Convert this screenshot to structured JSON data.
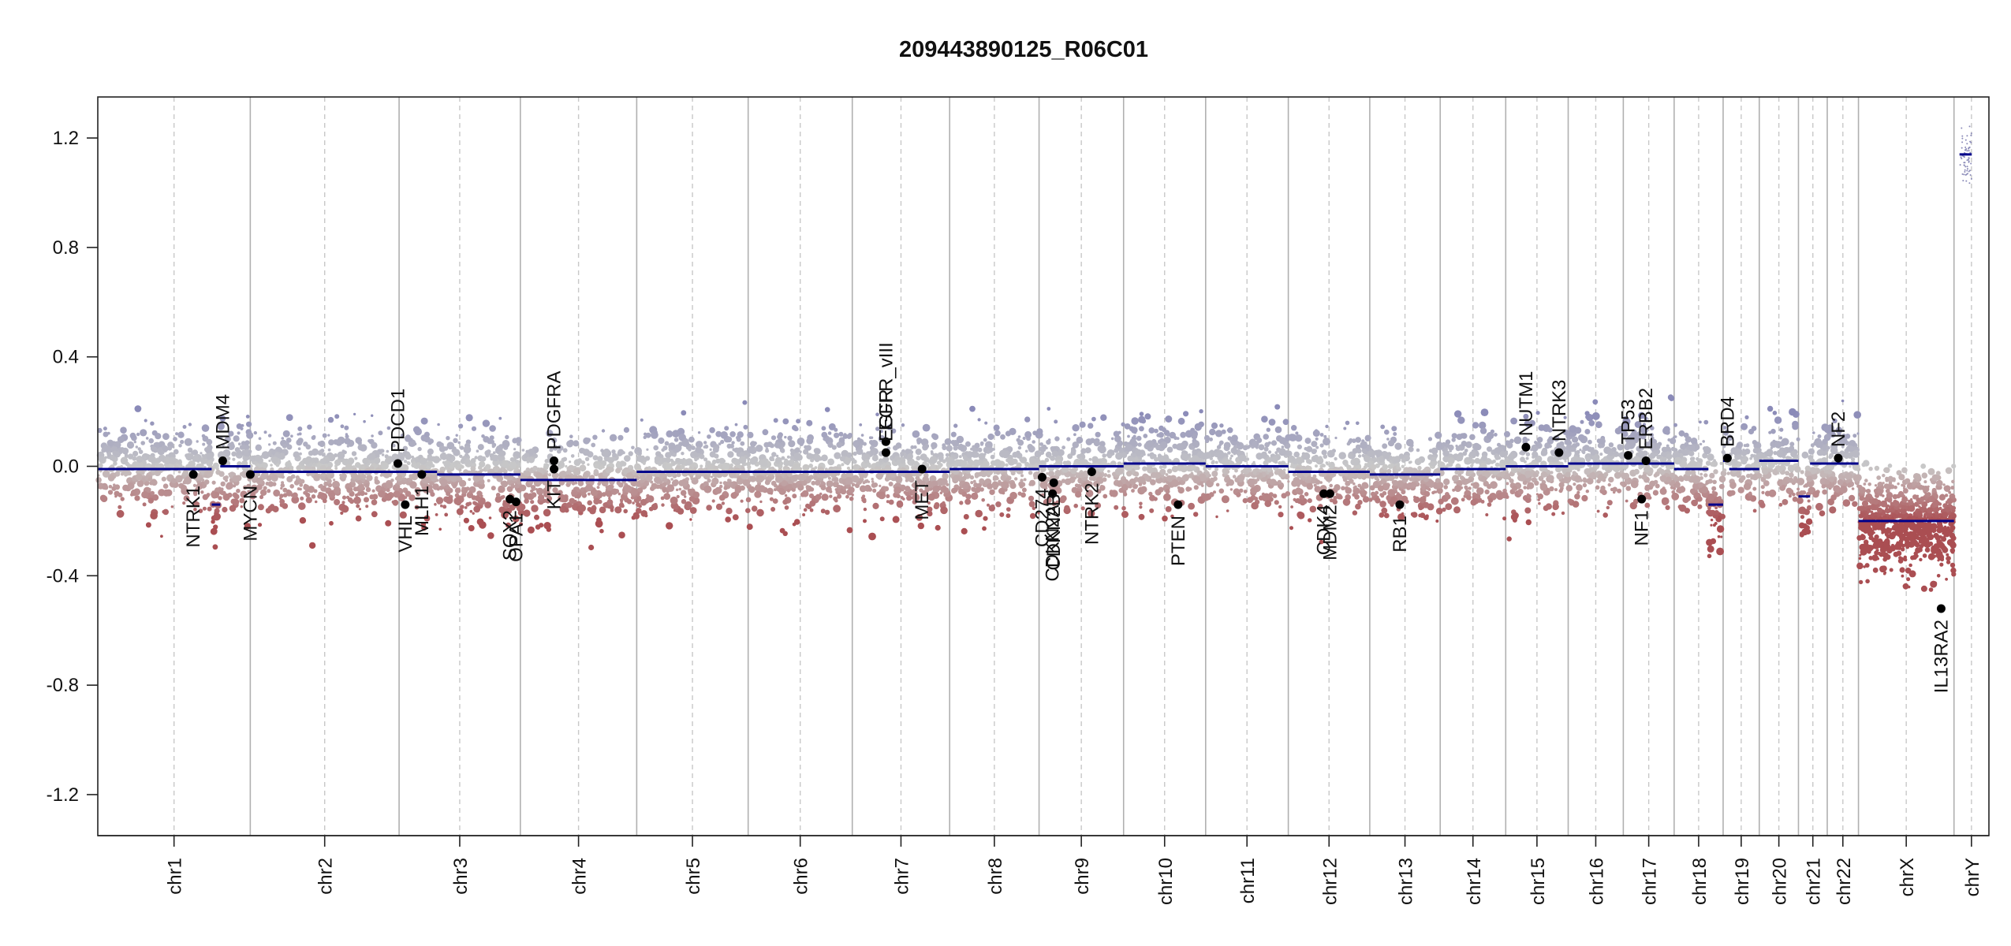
{
  "chart_data": {
    "type": "scatter",
    "title": "209443890125_R06C01",
    "xlabel": "",
    "ylabel": "",
    "ylim": [
      -1.35,
      1.35
    ],
    "yticks": [
      "1.2",
      "0.8",
      "0.4",
      "0.0",
      "-0.4",
      "-0.8",
      "-1.2"
    ],
    "ytick_values": [
      1.2,
      0.8,
      0.4,
      0.0,
      -0.4,
      -0.8,
      -1.2
    ],
    "grid": false,
    "legend": "none",
    "colors": {
      "segment": "#00008b",
      "gain": "#8b8bb8",
      "loss": "#a0393a",
      "neutral": "#c8c8c8",
      "gene": "#000000"
    },
    "chromosomes": [
      {
        "name": "chr1",
        "start": 0,
        "end": 249
      },
      {
        "name": "chr2",
        "start": 249,
        "end": 492
      },
      {
        "name": "chr3",
        "start": 492,
        "end": 690
      },
      {
        "name": "chr4",
        "start": 690,
        "end": 880
      },
      {
        "name": "chr5",
        "start": 880,
        "end": 1062
      },
      {
        "name": "chr6",
        "start": 1062,
        "end": 1232
      },
      {
        "name": "chr7",
        "start": 1232,
        "end": 1391
      },
      {
        "name": "chr8",
        "start": 1391,
        "end": 1537
      },
      {
        "name": "chr9",
        "start": 1537,
        "end": 1675
      },
      {
        "name": "chr10",
        "start": 1675,
        "end": 1809
      },
      {
        "name": "chr11",
        "start": 1809,
        "end": 1944
      },
      {
        "name": "chr12",
        "start": 1944,
        "end": 2077
      },
      {
        "name": "chr13",
        "start": 2077,
        "end": 2192
      },
      {
        "name": "chr14",
        "start": 2192,
        "end": 2299
      },
      {
        "name": "chr15",
        "start": 2299,
        "end": 2401
      },
      {
        "name": "chr16",
        "start": 2401,
        "end": 2491
      },
      {
        "name": "chr17",
        "start": 2491,
        "end": 2574
      },
      {
        "name": "chr18",
        "start": 2574,
        "end": 2654
      },
      {
        "name": "chr19",
        "start": 2654,
        "end": 2713
      },
      {
        "name": "chr20",
        "start": 2713,
        "end": 2777
      },
      {
        "name": "chr21",
        "start": 2777,
        "end": 2824
      },
      {
        "name": "chr22",
        "start": 2824,
        "end": 2875
      },
      {
        "name": "chrX",
        "start": 2875,
        "end": 3031
      },
      {
        "name": "chrY",
        "start": 3031,
        "end": 3088
      }
    ],
    "segments": [
      {
        "x0": 0,
        "x1": 186,
        "y": -0.01
      },
      {
        "x0": 186,
        "x1": 200,
        "y": -0.14
      },
      {
        "x0": 200,
        "x1": 249,
        "y": 0.0
      },
      {
        "x0": 249,
        "x1": 492,
        "y": -0.02
      },
      {
        "x0": 492,
        "x1": 554,
        "y": -0.02
      },
      {
        "x0": 554,
        "x1": 690,
        "y": -0.03
      },
      {
        "x0": 690,
        "x1": 880,
        "y": -0.05
      },
      {
        "x0": 880,
        "x1": 1062,
        "y": -0.02
      },
      {
        "x0": 1062,
        "x1": 1232,
        "y": -0.02
      },
      {
        "x0": 1232,
        "x1": 1391,
        "y": -0.02
      },
      {
        "x0": 1391,
        "x1": 1537,
        "y": -0.01
      },
      {
        "x0": 1537,
        "x1": 1675,
        "y": 0.0
      },
      {
        "x0": 1675,
        "x1": 1809,
        "y": 0.01
      },
      {
        "x0": 1809,
        "x1": 1944,
        "y": 0.0
      },
      {
        "x0": 1944,
        "x1": 2077,
        "y": -0.02
      },
      {
        "x0": 2077,
        "x1": 2192,
        "y": -0.03
      },
      {
        "x0": 2192,
        "x1": 2299,
        "y": -0.01
      },
      {
        "x0": 2299,
        "x1": 2401,
        "y": 0.0
      },
      {
        "x0": 2401,
        "x1": 2491,
        "y": 0.01
      },
      {
        "x0": 2491,
        "x1": 2574,
        "y": 0.01
      },
      {
        "x0": 2574,
        "x1": 2630,
        "y": -0.01
      },
      {
        "x0": 2630,
        "x1": 2654,
        "y": -0.14
      },
      {
        "x0": 2654,
        "x1": 2664,
        "y": 0.02
      },
      {
        "x0": 2664,
        "x1": 2713,
        "y": -0.01
      },
      {
        "x0": 2713,
        "x1": 2777,
        "y": 0.02
      },
      {
        "x0": 2777,
        "x1": 2796,
        "y": -0.11
      },
      {
        "x0": 2796,
        "x1": 2824,
        "y": 0.01
      },
      {
        "x0": 2824,
        "x1": 2875,
        "y": 0.01
      },
      {
        "x0": 2875,
        "x1": 3031,
        "y": -0.2
      },
      {
        "x0": 3040,
        "x1": 3060,
        "y": 1.14
      }
    ],
    "genes": [
      {
        "name": "NTRK1",
        "x": 156,
        "y": -0.03,
        "label_side": "below"
      },
      {
        "name": "MDM4",
        "x": 204,
        "y": 0.02,
        "label_side": "above"
      },
      {
        "name": "MYCN",
        "x": 249,
        "y": -0.03,
        "label_side": "below"
      },
      {
        "name": "PDCD1",
        "x": 490,
        "y": 0.01,
        "label_side": "above"
      },
      {
        "name": "VHL",
        "x": 502,
        "y": -0.14,
        "label_side": "below"
      },
      {
        "name": "MLH1",
        "x": 529,
        "y": -0.03,
        "label_side": "below"
      },
      {
        "name": "SOX2",
        "x": 673,
        "y": -0.12,
        "label_side": "below"
      },
      {
        "name": "OPA1",
        "x": 683,
        "y": -0.13,
        "label_side": "below"
      },
      {
        "name": "PDGFRA",
        "x": 745,
        "y": 0.02,
        "label_side": "above"
      },
      {
        "name": "KIT",
        "x": 745,
        "y": -0.01,
        "label_side": "below"
      },
      {
        "name": "EGFR_vIII",
        "x": 1287,
        "y": 0.09,
        "label_side": "above"
      },
      {
        "name": "EGFR",
        "x": 1287,
        "y": 0.05,
        "label_side": "above"
      },
      {
        "name": "MET",
        "x": 1346,
        "y": -0.01,
        "label_side": "below"
      },
      {
        "name": "CD274",
        "x": 1542,
        "y": -0.04,
        "label_side": "below"
      },
      {
        "name": "CDKN2A",
        "x": 1559,
        "y": -0.1,
        "label_side": "below"
      },
      {
        "name": "CDKN2B",
        "x": 1561,
        "y": -0.06,
        "label_side": "below"
      },
      {
        "name": "NTRK2",
        "x": 1623,
        "y": -0.02,
        "label_side": "below"
      },
      {
        "name": "PTEN",
        "x": 1764,
        "y": -0.14,
        "label_side": "below"
      },
      {
        "name": "CDK4",
        "x": 2002,
        "y": -0.1,
        "label_side": "below"
      },
      {
        "name": "MDM2",
        "x": 2012,
        "y": -0.1,
        "label_side": "below"
      },
      {
        "name": "RB1",
        "x": 2126,
        "y": -0.14,
        "label_side": "below"
      },
      {
        "name": "NUTM1",
        "x": 2332,
        "y": 0.07,
        "label_side": "above"
      },
      {
        "name": "NTRK3",
        "x": 2386,
        "y": 0.05,
        "label_side": "above"
      },
      {
        "name": "TP53",
        "x": 2499,
        "y": 0.04,
        "label_side": "above"
      },
      {
        "name": "ERBB2",
        "x": 2528,
        "y": 0.02,
        "label_side": "above"
      },
      {
        "name": "NF1",
        "x": 2521,
        "y": -0.12,
        "label_side": "below"
      },
      {
        "name": "BRD4",
        "x": 2661,
        "y": 0.03,
        "label_side": "above"
      },
      {
        "name": "NF2",
        "x": 2842,
        "y": 0.03,
        "label_side": "above"
      },
      {
        "name": "IL13RA2",
        "x": 3010,
        "y": -0.52,
        "label_side": "below"
      }
    ]
  }
}
